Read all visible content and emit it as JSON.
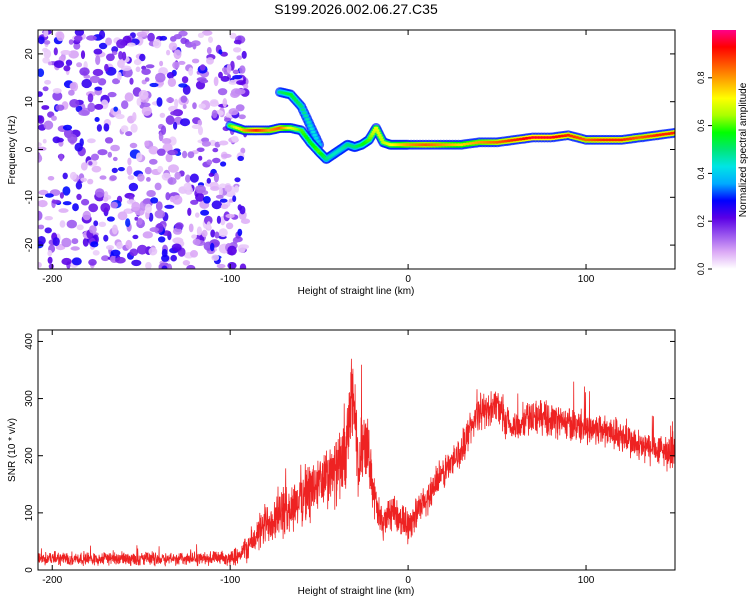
{
  "title": "S199.2026.002.06.27.C35",
  "chart_data": [
    {
      "type": "heatmap",
      "name": "spectrogram",
      "xlabel": "Height of straight line (km)",
      "ylabel": "Frequency (Hz)",
      "xlim": [
        -208,
        150
      ],
      "ylim": [
        -25,
        25
      ],
      "xticks": [
        -200,
        -100,
        0,
        100
      ],
      "xtick_labels": [
        "-200",
        "-100",
        "0",
        "100"
      ],
      "yticks": [
        -20,
        -10,
        0,
        10,
        20
      ],
      "ytick_labels": [
        "-20",
        "-10",
        "0",
        "10",
        "20"
      ],
      "noise_region_x": [
        -208,
        -95
      ],
      "signal_track": {
        "x": [
          -100,
          -92,
          -85,
          -78,
          -72,
          -66,
          -60,
          -55,
          -50,
          -46,
          -42,
          -38,
          -34,
          -30,
          -26,
          -22,
          -18,
          -14,
          -10,
          -5,
          0,
          10,
          20,
          30,
          40,
          50,
          60,
          70,
          80,
          90,
          100,
          110,
          120,
          130,
          140,
          150
        ],
        "freq": [
          5,
          4,
          4,
          4,
          4.5,
          4.5,
          4,
          1.5,
          -0.5,
          -2,
          -1,
          0,
          1,
          0.5,
          1,
          2,
          4.5,
          1.5,
          1,
          1,
          1,
          1,
          1,
          1,
          1.5,
          1.5,
          2,
          2.5,
          2.5,
          3,
          2,
          2,
          2,
          2.5,
          3,
          3.5
        ],
        "amplitude": [
          0.6,
          0.8,
          0.9,
          0.8,
          0.85,
          0.7,
          0.6,
          0.55,
          0.6,
          0.5,
          0.45,
          0.45,
          0.5,
          0.5,
          0.55,
          0.6,
          0.7,
          0.65,
          0.7,
          0.75,
          0.8,
          0.85,
          0.8,
          0.75,
          0.8,
          0.85,
          0.9,
          0.95,
          0.95,
          0.9,
          0.85,
          0.9,
          0.9,
          0.85,
          0.9,
          0.9
        ]
      },
      "branch_track": {
        "x": [
          -72,
          -66,
          -60,
          -55,
          -50
        ],
        "freq": [
          12,
          11.5,
          9,
          5,
          1
        ],
        "amplitude": [
          0.5,
          0.55,
          0.5,
          0.45,
          0.4
        ]
      }
    },
    {
      "type": "colorbar",
      "name": "amplitude-colorbar",
      "label": "Normalized spectral amplitude",
      "range": [
        0,
        1
      ],
      "ticks": [
        0.0,
        0.2,
        0.4,
        0.6,
        0.8
      ],
      "tick_labels": [
        "0.0",
        "0.2",
        "0.4",
        "0.6",
        "0.8"
      ],
      "colors": [
        "#ffffff",
        "#dcaaf6",
        "#9955ee",
        "#5a00e6",
        "#0000ff",
        "#00aaff",
        "#00e5e5",
        "#00e676",
        "#00ff00",
        "#aaff00",
        "#ffff00",
        "#ffaa00",
        "#ff5500",
        "#ff0000",
        "#ff0088"
      ]
    },
    {
      "type": "line",
      "name": "snr-plot",
      "xlabel": "Height of straight line (km)",
      "ylabel": "SNR (10 * v/v)",
      "xlim": [
        -208,
        150
      ],
      "ylim": [
        0,
        420
      ],
      "xticks": [
        -200,
        -100,
        0,
        100
      ],
      "xtick_labels": [
        "-200",
        "-100",
        "0",
        "100"
      ],
      "yticks": [
        0,
        100,
        200,
        300,
        400
      ],
      "ytick_labels": [
        "0",
        "100",
        "200",
        "300",
        "400"
      ],
      "color": "#ee2222",
      "envelope": {
        "x": [
          -208,
          -120,
          -100,
          -95,
          -90,
          -85,
          -80,
          -75,
          -70,
          -65,
          -60,
          -55,
          -50,
          -45,
          -40,
          -35,
          -31,
          -28,
          -25,
          -22,
          -18,
          -15,
          -10,
          -5,
          0,
          5,
          10,
          15,
          20,
          25,
          30,
          35,
          40,
          45,
          50,
          55,
          60,
          65,
          70,
          80,
          90,
          100,
          110,
          120,
          130,
          140,
          150
        ],
        "mean": [
          20,
          20,
          20,
          28,
          40,
          60,
          80,
          95,
          100,
          110,
          130,
          140,
          150,
          160,
          175,
          200,
          320,
          160,
          240,
          200,
          110,
          80,
          100,
          90,
          80,
          100,
          120,
          150,
          170,
          190,
          210,
          250,
          275,
          280,
          295,
          250,
          250,
          260,
          270,
          265,
          255,
          250,
          245,
          235,
          215,
          210,
          205
        ],
        "spread": [
          12,
          12,
          12,
          18,
          25,
          30,
          40,
          45,
          45,
          45,
          50,
          55,
          55,
          55,
          60,
          60,
          90,
          60,
          70,
          50,
          40,
          30,
          30,
          30,
          30,
          30,
          30,
          30,
          30,
          30,
          30,
          30,
          30,
          30,
          30,
          30,
          30,
          30,
          30,
          30,
          30,
          30,
          30,
          30,
          30,
          30,
          30
        ]
      }
    }
  ]
}
